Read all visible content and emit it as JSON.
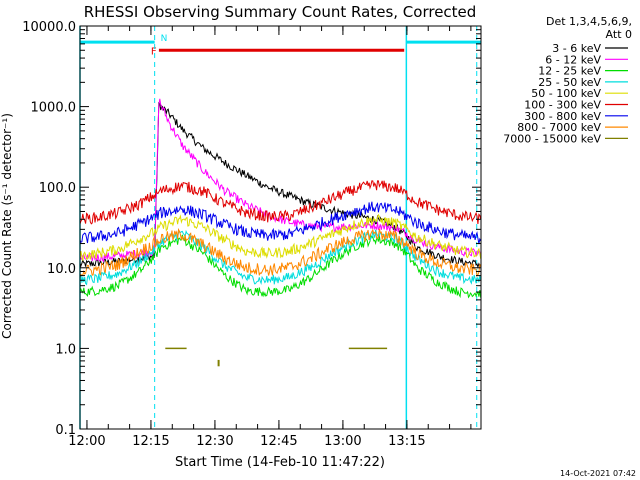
{
  "colors": {
    "cyan": "#00e0f0",
    "red": "#e00000",
    "background": "#ffffff",
    "axes": "#000000"
  },
  "chart_data": {
    "type": "line",
    "title": "RHESSI Observing Summary Count Rates, Corrected",
    "xlabel": "Start Time (14-Feb-10 11:47:22)",
    "ylabel": "Corrected Count Rate (s⁻¹ detector⁻¹)",
    "yscale": "log",
    "ylim": [
      0.1,
      10000
    ],
    "xlim_minutes": [
      11.0,
      105.0
    ],
    "x_ticks": [
      {
        "label": "12:00",
        "value": 12.63
      },
      {
        "label": "12:15",
        "value": 27.63
      },
      {
        "label": "12:30",
        "value": 42.63
      },
      {
        "label": "12:45",
        "value": 57.63
      },
      {
        "label": "13:00",
        "value": 72.63
      },
      {
        "label": "13:15",
        "value": 87.63
      }
    ],
    "y_ticks": [
      {
        "label": "10000.0",
        "value": 10000
      },
      {
        "label": "1000.0",
        "value": 1000
      },
      {
        "label": "100.0",
        "value": 100
      },
      {
        "label": "10.0",
        "value": 10
      },
      {
        "label": "1.0",
        "value": 1
      },
      {
        "label": "0.1",
        "value": 0.1
      }
    ],
    "legend": {
      "placement": "top-right",
      "header": [
        "Det 1,3,4,5,6,9,",
        "Att 0"
      ]
    },
    "markers": {
      "flare_label": "F",
      "night_label": "N",
      "night_intervals": [
        [
          11.0,
          28.5
        ],
        [
          87.5,
          105.0
        ]
      ],
      "flare_interval": [
        29.5,
        87.0
      ],
      "cyan_marker_level": 6300,
      "flare_marker_level": 5000,
      "dashed_vlines": [
        28.5,
        104.0
      ],
      "solid_vlines": [
        11.0,
        87.5
      ]
    },
    "series": [
      {
        "name": "3 - 6 keV",
        "color": "#000000",
        "x": [
          11,
          20,
          28.5,
          29,
          29.5,
          30,
          32,
          35,
          40,
          45,
          50,
          55,
          60,
          65,
          70,
          75,
          80,
          85,
          87.5,
          90,
          95,
          100,
          105
        ],
        "y": [
          11,
          12,
          14,
          130,
          1100,
          1000,
          800,
          520,
          300,
          200,
          140,
          100,
          78,
          62,
          52,
          45,
          40,
          32,
          25,
          18,
          14,
          12,
          11
        ]
      },
      {
        "name": "6 - 12 keV",
        "color": "#ff00ff",
        "x": [
          11,
          20,
          28.5,
          29,
          29.5,
          30,
          32,
          35,
          40,
          45,
          50,
          55,
          60,
          65,
          70,
          75,
          80,
          85,
          87.5,
          90,
          95,
          100,
          105
        ],
        "y": [
          13,
          14,
          16,
          150,
          1250,
          1050,
          620,
          330,
          160,
          90,
          60,
          45,
          37,
          33,
          32,
          33,
          34,
          31,
          27,
          22,
          18,
          16,
          15
        ]
      },
      {
        "name": "12 - 25 keV",
        "color": "#00dd00",
        "x": [
          11,
          15,
          20,
          25,
          28.5,
          30,
          35,
          40,
          45,
          50,
          55,
          60,
          65,
          70,
          75,
          80,
          85,
          87.5,
          90,
          95,
          100,
          105
        ],
        "y": [
          5,
          5.2,
          6,
          9,
          14,
          18,
          23,
          15,
          8,
          5.2,
          5,
          5.3,
          7.5,
          12,
          18,
          23,
          20,
          15,
          10,
          6.5,
          5,
          4.8
        ]
      },
      {
        "name": "25 - 50 keV",
        "color": "#00dddd",
        "x": [
          11,
          15,
          20,
          25,
          28.5,
          30,
          35,
          40,
          45,
          50,
          55,
          60,
          65,
          70,
          75,
          80,
          85,
          87.5,
          90,
          95,
          100,
          105
        ],
        "y": [
          7,
          7.3,
          8.5,
          12,
          17,
          21,
          27,
          18,
          10.5,
          7.5,
          7,
          7.6,
          10,
          15,
          21,
          26,
          23,
          18,
          13,
          9,
          7.4,
          7
        ]
      },
      {
        "name": "50 - 100 keV",
        "color": "#dddd00",
        "x": [
          11,
          15,
          20,
          25,
          28.5,
          30,
          35,
          40,
          45,
          50,
          55,
          60,
          65,
          70,
          75,
          80,
          85,
          87.5,
          90,
          95,
          100,
          105
        ],
        "y": [
          14,
          15,
          17,
          23,
          28,
          32,
          40,
          32,
          22,
          16,
          15,
          16,
          20,
          26,
          34,
          40,
          36,
          30,
          24,
          19,
          16,
          15
        ]
      },
      {
        "name": "100 - 300 keV",
        "color": "#e00000",
        "x": [
          11,
          15,
          20,
          25,
          28.5,
          30,
          35,
          40,
          45,
          50,
          55,
          60,
          65,
          70,
          75,
          80,
          85,
          87.5,
          90,
          95,
          100,
          105
        ],
        "y": [
          40,
          42,
          48,
          62,
          80,
          90,
          105,
          88,
          62,
          48,
          43,
          44,
          55,
          72,
          92,
          108,
          98,
          82,
          66,
          52,
          44,
          40
        ]
      },
      {
        "name": "300 - 800 keV",
        "color": "#0000ee",
        "x": [
          11,
          15,
          20,
          25,
          28.5,
          30,
          35,
          40,
          45,
          50,
          55,
          60,
          65,
          70,
          75,
          80,
          85,
          87.5,
          90,
          95,
          100,
          105
        ],
        "y": [
          23,
          24,
          27,
          35,
          43,
          48,
          54,
          45,
          34,
          27,
          25,
          26,
          32,
          40,
          50,
          57,
          52,
          44,
          36,
          29,
          25,
          23
        ]
      },
      {
        "name": "800 - 7000 keV",
        "color": "#ff8800",
        "x": [
          11,
          15,
          20,
          25,
          28.5,
          30,
          35,
          40,
          45,
          50,
          55,
          60,
          65,
          70,
          75,
          80,
          85,
          87.5,
          90,
          95,
          100,
          105
        ],
        "y": [
          9,
          9.5,
          11,
          16,
          20,
          23,
          26,
          19,
          13,
          10,
          9.4,
          10,
          13,
          18,
          23,
          27,
          24,
          20,
          15,
          11.5,
          9.8,
          9.2
        ]
      },
      {
        "name": "7000 - 15000 keV",
        "color": "#808000",
        "segments": [
          {
            "x": [
              31,
              32,
              33,
              34,
              35,
              36
            ],
            "y": [
              1,
              1,
              1,
              1,
              1,
              1
            ]
          },
          {
            "x": [
              74,
              75,
              76,
              77,
              78,
              79,
              80,
              81,
              82,
              83
            ],
            "y": [
              1,
              1,
              1,
              1,
              1,
              1,
              1,
              1,
              1,
              1
            ]
          },
          {
            "x": [
              43.5,
              43.5
            ],
            "y": [
              0.6,
              0.72
            ]
          }
        ]
      }
    ]
  },
  "footer": {
    "timestamp": "14-Oct-2021 07:42"
  }
}
